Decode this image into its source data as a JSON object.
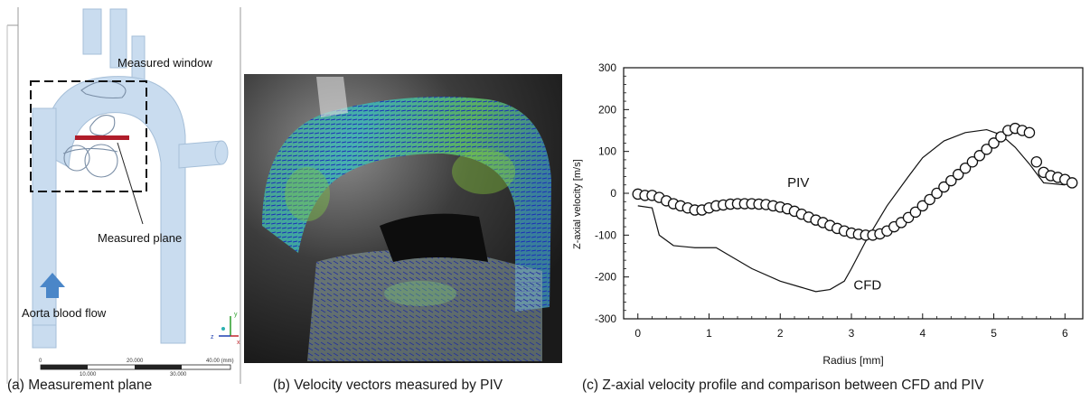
{
  "figure": {
    "panel_a": {
      "caption": "(a) Measurement plane",
      "labels": {
        "measured_window": "Measured window",
        "measured_plane": "Measured plane",
        "aorta_blood_flow": "Aorta blood flow"
      },
      "scale_bar": {
        "ticks_top": [
          "0",
          "20.000",
          "40.00 (mm)"
        ],
        "ticks_bottom": [
          "10.000",
          "30.000"
        ]
      },
      "axes_triad": [
        "y",
        "z",
        "x"
      ],
      "colors": {
        "vessel": "#c9dcef",
        "plane": "#b01d2a",
        "arrow": "#4a86c8"
      }
    },
    "panel_b": {
      "caption": "(b) Velocity vectors measured by PIV"
    },
    "panel_c": {
      "caption": "(c) Z-axial velocity profile and comparison between CFD and PIV"
    }
  },
  "chart_data": {
    "type": "line",
    "xlabel": "Radius [mm]",
    "ylabel": "Z-axial velocity [m/s]",
    "xlim": [
      -0.2,
      6.25
    ],
    "ylim": [
      -300,
      300
    ],
    "xticks": [
      0,
      1,
      2,
      3,
      4,
      5,
      6
    ],
    "yticks": [
      300,
      200,
      100,
      0,
      -100,
      -200,
      -300
    ],
    "grid": false,
    "series": [
      {
        "name": "PIV",
        "style": "open-circle markers",
        "x": [
          0.0,
          0.1,
          0.2,
          0.3,
          0.4,
          0.5,
          0.6,
          0.7,
          0.8,
          0.9,
          1.0,
          1.1,
          1.2,
          1.3,
          1.4,
          1.5,
          1.6,
          1.7,
          1.8,
          1.9,
          2.0,
          2.1,
          2.2,
          2.3,
          2.4,
          2.5,
          2.6,
          2.7,
          2.8,
          2.9,
          3.0,
          3.1,
          3.2,
          3.3,
          3.4,
          3.5,
          3.6,
          3.7,
          3.8,
          3.9,
          4.0,
          4.1,
          4.2,
          4.3,
          4.4,
          4.5,
          4.6,
          4.7,
          4.8,
          4.9,
          5.0,
          5.1,
          5.2,
          5.3,
          5.4,
          5.5,
          5.6,
          5.7,
          5.8,
          5.9,
          6.0,
          6.1
        ],
        "y": [
          -2,
          -5,
          -5,
          -10,
          -18,
          -25,
          -30,
          -35,
          -40,
          -40,
          -35,
          -30,
          -28,
          -26,
          -25,
          -25,
          -25,
          -26,
          -27,
          -30,
          -33,
          -37,
          -43,
          -50,
          -57,
          -64,
          -70,
          -77,
          -84,
          -90,
          -95,
          -98,
          -100,
          -100,
          -97,
          -90,
          -80,
          -70,
          -58,
          -45,
          -30,
          -15,
          0,
          15,
          30,
          45,
          60,
          75,
          90,
          105,
          120,
          135,
          150,
          155,
          150,
          145,
          75,
          50,
          42,
          38,
          33,
          25
        ]
      },
      {
        "name": "CFD",
        "style": "solid line",
        "x": [
          0.0,
          0.2,
          0.3,
          0.5,
          0.8,
          1.1,
          1.3,
          1.6,
          2.0,
          2.3,
          2.5,
          2.7,
          2.9,
          3.0,
          3.2,
          3.5,
          3.8,
          4.0,
          4.3,
          4.6,
          4.9,
          5.1,
          5.3,
          5.5,
          5.7,
          6.0
        ],
        "y": [
          -30,
          -35,
          -100,
          -125,
          -130,
          -130,
          -150,
          -180,
          -210,
          -225,
          -235,
          -230,
          -210,
          -180,
          -115,
          -30,
          40,
          85,
          125,
          145,
          152,
          140,
          110,
          70,
          25,
          20
        ]
      }
    ],
    "annotations": [
      "PIV",
      "CFD"
    ]
  }
}
